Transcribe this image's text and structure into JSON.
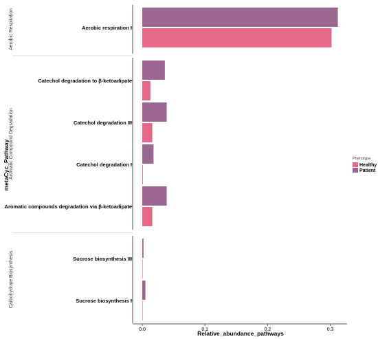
{
  "chart_data": {
    "type": "bar",
    "orientation": "horizontal",
    "title": "",
    "xlabel": "Relative_abundance_pathways",
    "ylabel": "metaCyc_Pathway",
    "xlim": [
      0,
      0.33
    ],
    "xticks": [
      0.0,
      0.1,
      0.2,
      0.3
    ],
    "xtick_labels": [
      "0.0",
      "0.1",
      "0.2",
      "0.3"
    ],
    "grid": false,
    "legend": {
      "title": "Phenotype",
      "position": "right",
      "entries": [
        {
          "name": "Healthy",
          "color": "#E8688A"
        },
        {
          "name": "Patient",
          "color": "#9B6690"
        }
      ]
    },
    "facets": [
      {
        "label": "Aerobic Respiration",
        "categories": [
          "Aerobic respiration I"
        ]
      },
      {
        "label": "Aromatic Compound Degradation",
        "categories": [
          "Catechol degradation to β-ketoadipate",
          "Catechol degradation III",
          "Catechol degradation I",
          "Aromatic compounds degradation via β-ketoadipate"
        ]
      },
      {
        "label": "Carbohydrate Biosynthesis",
        "categories": [
          "Sucrose biosynthesis III",
          "Sucrose biosynthesis I"
        ]
      }
    ],
    "series": [
      {
        "name": "Patient",
        "color": "#9B6690",
        "values": [
          0.312,
          0.036,
          0.039,
          0.018,
          0.039,
          0.002,
          0.005
        ]
      },
      {
        "name": "Healthy",
        "color": "#E8688A",
        "values": [
          0.302,
          0.013,
          0.016,
          0.001,
          0.016,
          0.0,
          0.0
        ]
      }
    ]
  }
}
